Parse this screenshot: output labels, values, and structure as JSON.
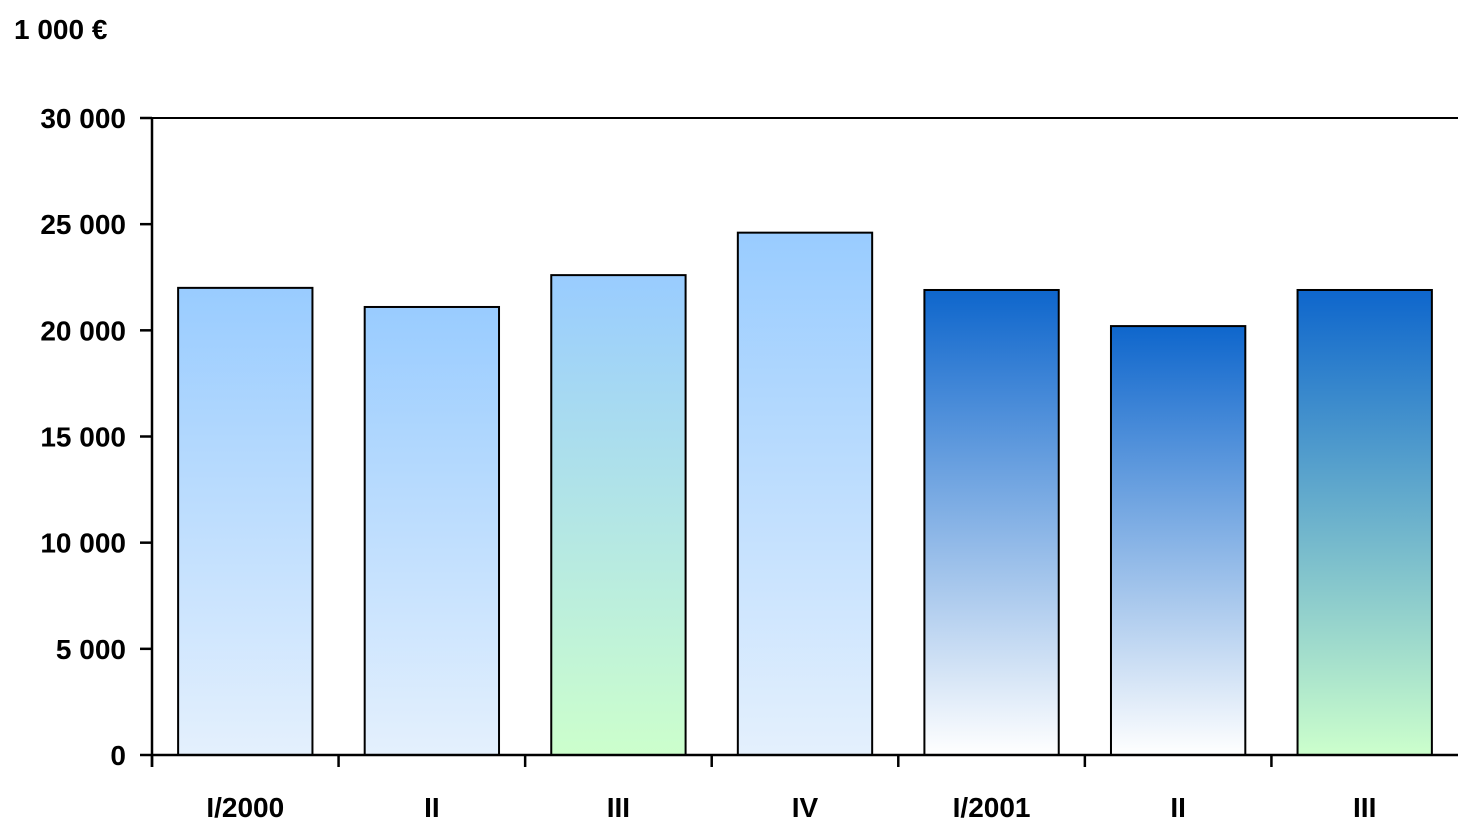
{
  "chart_data": {
    "type": "bar",
    "unit_label": "1 000 €",
    "title": "",
    "xlabel": "",
    "ylabel": "",
    "categories": [
      "I/2000",
      "II",
      "III",
      "IV",
      "I/2001",
      "II",
      "III"
    ],
    "values": [
      22000,
      21100,
      22600,
      24600,
      21900,
      20200,
      21900
    ],
    "ylim": [
      0,
      30000
    ],
    "yticks": [
      0,
      5000,
      10000,
      15000,
      20000,
      25000,
      30000
    ],
    "ytick_labels": [
      "0",
      "5 000",
      "10 000",
      "15 000",
      "20 000",
      "25 000",
      "30 000"
    ],
    "grid": false,
    "bar_gradients": [
      {
        "top": "#99ccff",
        "bottom": "#e4f0fd"
      },
      {
        "top": "#99ccff",
        "bottom": "#e4f0fd"
      },
      {
        "top": "#99ccff",
        "bottom": "#ccffcc"
      },
      {
        "top": "#99ccff",
        "bottom": "#e4f0fd"
      },
      {
        "top": "#0e66cc",
        "bottom": "#ffffff"
      },
      {
        "top": "#0e66cc",
        "bottom": "#ffffff"
      },
      {
        "top": "#0e66cc",
        "bottom": "#ccffcc"
      }
    ]
  }
}
